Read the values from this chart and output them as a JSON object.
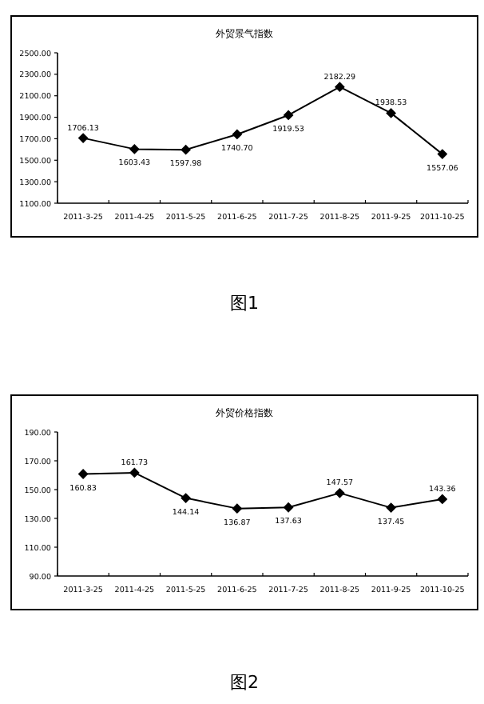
{
  "chart_data": [
    {
      "type": "line",
      "title": "外贸景气指数",
      "categories": [
        "2011-3-25",
        "2011-4-25",
        "2011-5-25",
        "2011-6-25",
        "2011-7-25",
        "2011-8-25",
        "2011-9-25",
        "2011-10-25"
      ],
      "series": [
        {
          "color": "#000000",
          "values": [
            1706.13,
            1603.43,
            1597.98,
            1740.7,
            1919.53,
            2182.29,
            1938.53,
            1557.06
          ],
          "value_labels": [
            "1706.13",
            "1603.43",
            "1597.98",
            "1740.70",
            "1919.53",
            "2182.29",
            "1938.53",
            "1557.06"
          ]
        }
      ],
      "ylim": [
        1100,
        2500
      ],
      "yticks": [
        {
          "value": 1100,
          "label": "1100.00"
        },
        {
          "value": 1300,
          "label": "1300.00"
        },
        {
          "value": 1500,
          "label": "1500.00"
        },
        {
          "value": 1700,
          "label": "1700.00"
        },
        {
          "value": 1900,
          "label": "1900.00"
        },
        {
          "value": 2100,
          "label": "2100.00"
        },
        {
          "value": 2300,
          "label": "2300.00"
        },
        {
          "value": 2500,
          "label": "2500.00"
        }
      ],
      "marker": "diamond",
      "line_style": "solid",
      "annotations": [
        "图1"
      ]
    },
    {
      "type": "line",
      "title": "外贸价格指数",
      "categories": [
        "2011-3-25",
        "2011-4-25",
        "2011-5-25",
        "2011-6-25",
        "2011-7-25",
        "2011-8-25",
        "2011-9-25",
        "2011-10-25"
      ],
      "series": [
        {
          "color": "#000000",
          "values": [
            160.83,
            161.73,
            144.14,
            136.87,
            137.63,
            147.57,
            137.45,
            143.36
          ],
          "value_labels": [
            "160.83",
            "161.73",
            "144.14",
            "136.87",
            "137.63",
            "147.57",
            "137.45",
            "143.36"
          ]
        }
      ],
      "ylim": [
        90,
        190
      ],
      "yticks": [
        {
          "value": 90,
          "label": "90.00"
        },
        {
          "value": 110,
          "label": "110.00"
        },
        {
          "value": 130,
          "label": "130.00"
        },
        {
          "value": 150,
          "label": "150.00"
        },
        {
          "value": 170,
          "label": "170.00"
        },
        {
          "value": 190,
          "label": "190.00"
        }
      ],
      "marker": "diamond",
      "line_style": "solid",
      "annotations": [
        "图2"
      ]
    }
  ]
}
